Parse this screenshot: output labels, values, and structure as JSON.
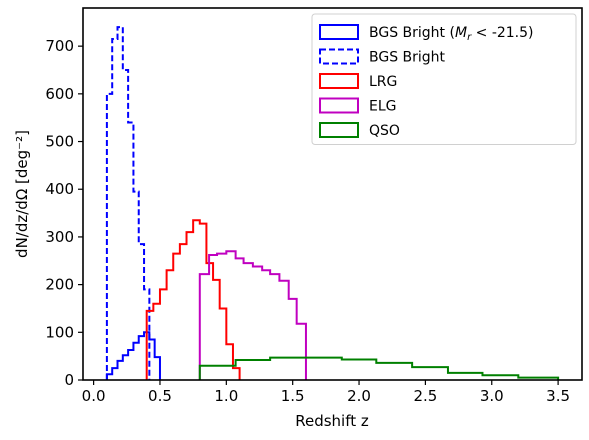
{
  "chart_data": {
    "type": "histogram-step",
    "xlabel": "Redshift z",
    "ylabel": "dN/dz/dΩ [deg⁻²]",
    "xlim": [
      -0.08,
      3.68
    ],
    "ylim": [
      0,
      780
    ],
    "xticks": [
      0.0,
      0.5,
      1.0,
      1.5,
      2.0,
      2.5,
      3.0,
      3.5
    ],
    "xtick_labels": [
      "0.0",
      "0.5",
      "1.0",
      "1.5",
      "2.0",
      "2.5",
      "3.0",
      "3.5"
    ],
    "yticks": [
      0,
      100,
      200,
      300,
      400,
      500,
      600,
      700
    ],
    "ytick_labels": [
      "0",
      "100",
      "200",
      "300",
      "400",
      "500",
      "600",
      "700"
    ],
    "grid": false,
    "legend_position": "top-right",
    "series": [
      {
        "name": "BGS Bright (Mr < -21.5)",
        "legend_label_parts": [
          "BGS Bright (",
          "M",
          "r",
          " < -21.5)"
        ],
        "color": "#0000ff",
        "style": "solid",
        "edges": [
          0.1,
          0.14,
          0.18,
          0.22,
          0.26,
          0.3,
          0.34,
          0.38,
          0.42,
          0.46,
          0.5
        ],
        "values": [
          12,
          25,
          40,
          52,
          63,
          78,
          92,
          100,
          85,
          48
        ]
      },
      {
        "name": "BGS Bright",
        "color": "#0000ff",
        "style": "dashed",
        "edges": [
          0.1,
          0.14,
          0.18,
          0.22,
          0.26,
          0.3,
          0.34,
          0.38,
          0.42
        ],
        "values": [
          600,
          715,
          740,
          650,
          540,
          395,
          285,
          190
        ]
      },
      {
        "name": "LRG",
        "color": "#ff0000",
        "style": "solid",
        "edges": [
          0.4,
          0.45,
          0.5,
          0.55,
          0.6,
          0.65,
          0.7,
          0.75,
          0.8,
          0.85,
          0.9,
          0.95,
          1.0,
          1.05,
          1.1
        ],
        "values": [
          145,
          160,
          190,
          230,
          265,
          285,
          310,
          335,
          328,
          245,
          210,
          150,
          75,
          25
        ]
      },
      {
        "name": "ELG",
        "color": "#c000c0",
        "style": "solid",
        "edges": [
          0.8,
          0.87,
          0.93,
          1.0,
          1.07,
          1.13,
          1.2,
          1.27,
          1.33,
          1.4,
          1.47,
          1.53,
          1.6
        ],
        "values": [
          222,
          262,
          265,
          270,
          255,
          245,
          238,
          230,
          222,
          208,
          170,
          118
        ]
      },
      {
        "name": "QSO",
        "color": "#008000",
        "style": "solid",
        "edges": [
          0.8,
          1.07,
          1.33,
          1.6,
          1.87,
          2.13,
          2.4,
          2.67,
          2.93,
          3.2,
          3.5
        ],
        "values": [
          30,
          42,
          47,
          47,
          43,
          36,
          27,
          15,
          10,
          5
        ]
      }
    ]
  }
}
